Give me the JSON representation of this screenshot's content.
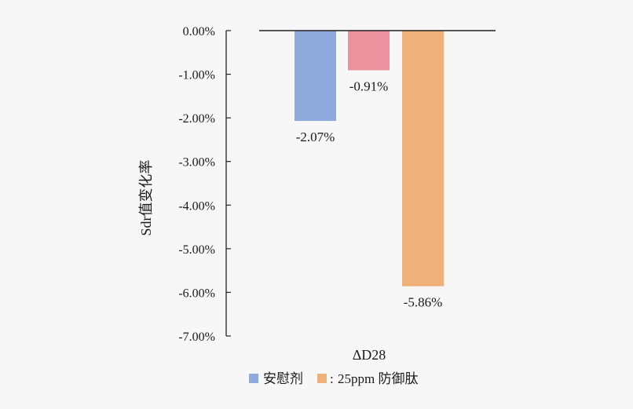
{
  "chart_data": {
    "type": "bar",
    "categories": [
      "ΔD28"
    ],
    "series": [
      {
        "name": "安慰剂",
        "values": [
          -2.07
        ],
        "color": "#8faadc",
        "label": "-2.07%"
      },
      {
        "name": "",
        "values": [
          -0.91
        ],
        "color": "#ec929e",
        "label": "-0.91%"
      },
      {
        "name": "25ppm 防御肽",
        "values": [
          -5.86
        ],
        "color": "#f0b07a",
        "label": "-5.86%"
      }
    ],
    "title": "",
    "xlabel": "ΔD28",
    "ylabel": "Sdr值变化率",
    "ylim": [
      -7.0,
      0.0
    ],
    "yticks": [
      "0.00%",
      "-1.00%",
      "-2.00%",
      "-3.00%",
      "-4.00%",
      "-5.00%",
      "-6.00%",
      "-7.00%"
    ],
    "grid": false,
    "legend_position": "bottom",
    "legend_separator": ":"
  }
}
